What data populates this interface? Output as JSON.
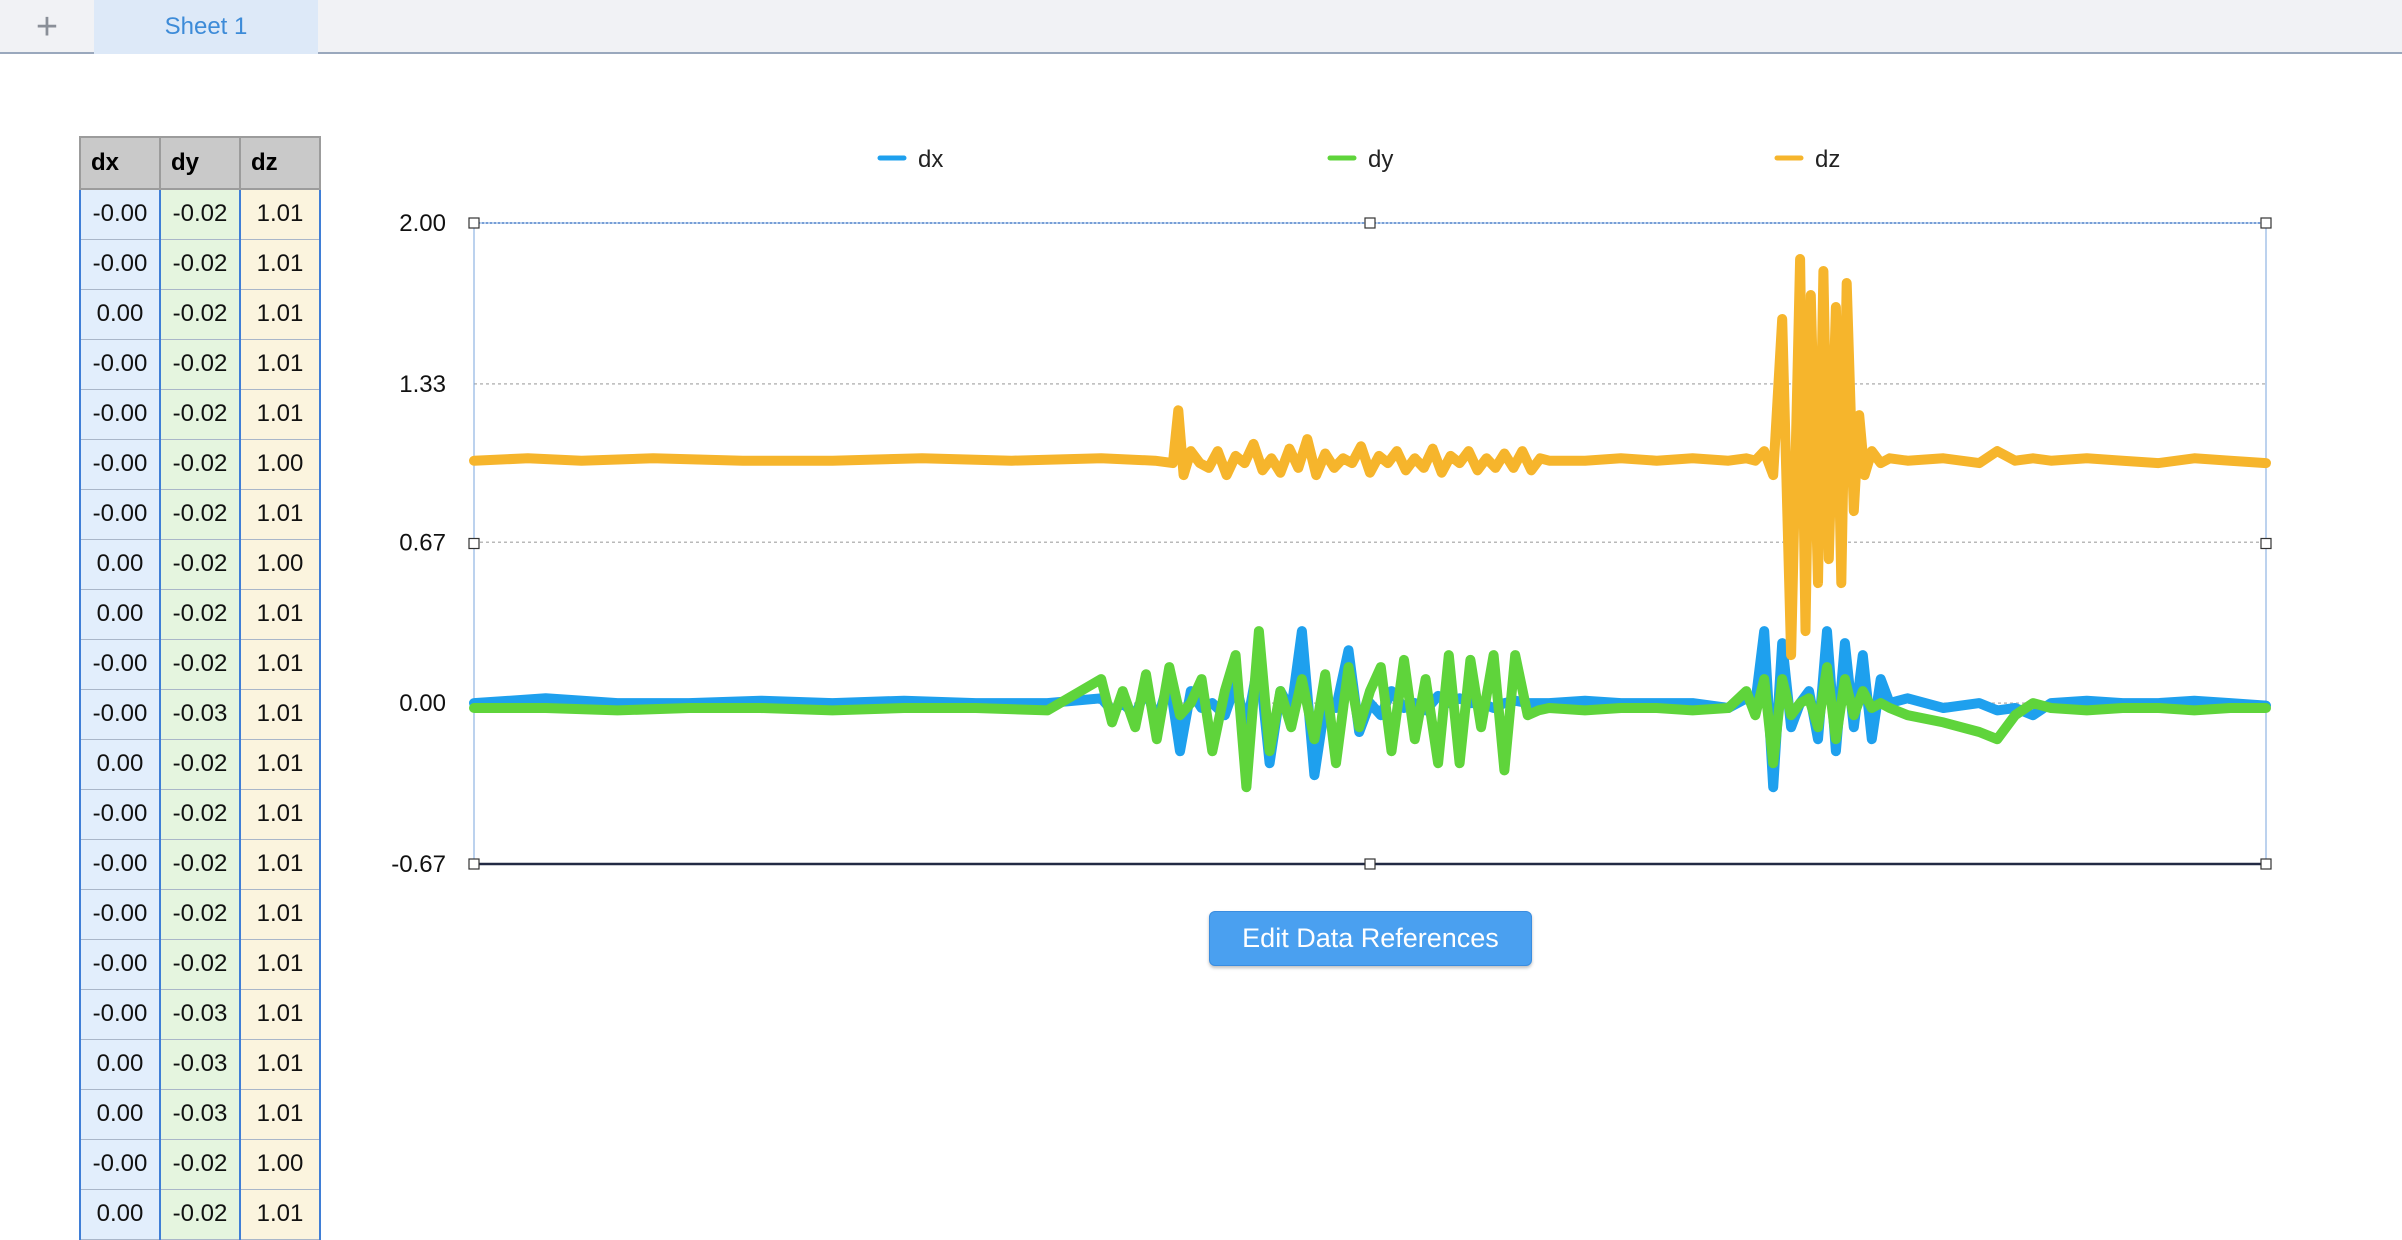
{
  "tabs": {
    "add_label": "+",
    "sheet_label": "Sheet 1"
  },
  "table": {
    "headers": [
      "dx",
      "dy",
      "dz"
    ],
    "rows": [
      [
        "-0.00",
        "-0.02",
        "1.01"
      ],
      [
        "-0.00",
        "-0.02",
        "1.01"
      ],
      [
        "0.00",
        "-0.02",
        "1.01"
      ],
      [
        "-0.00",
        "-0.02",
        "1.01"
      ],
      [
        "-0.00",
        "-0.02",
        "1.01"
      ],
      [
        "-0.00",
        "-0.02",
        "1.00"
      ],
      [
        "-0.00",
        "-0.02",
        "1.01"
      ],
      [
        "0.00",
        "-0.02",
        "1.00"
      ],
      [
        "0.00",
        "-0.02",
        "1.01"
      ],
      [
        "-0.00",
        "-0.02",
        "1.01"
      ],
      [
        "-0.00",
        "-0.03",
        "1.01"
      ],
      [
        "0.00",
        "-0.02",
        "1.01"
      ],
      [
        "-0.00",
        "-0.02",
        "1.01"
      ],
      [
        "-0.00",
        "-0.02",
        "1.01"
      ],
      [
        "-0.00",
        "-0.02",
        "1.01"
      ],
      [
        "-0.00",
        "-0.02",
        "1.01"
      ],
      [
        "-0.00",
        "-0.03",
        "1.01"
      ],
      [
        "0.00",
        "-0.03",
        "1.01"
      ],
      [
        "0.00",
        "-0.03",
        "1.01"
      ],
      [
        "-0.00",
        "-0.02",
        "1.00"
      ],
      [
        "0.00",
        "-0.02",
        "1.01"
      ]
    ]
  },
  "edit_button_label": "Edit Data References",
  "chart_data": {
    "type": "line",
    "ylim": [
      -0.67,
      2.0
    ],
    "ytick_labels": [
      "2.00",
      "1.33",
      "0.67",
      "0.00",
      "-0.67"
    ],
    "ytick_values": [
      2.0,
      1.33,
      0.67,
      0.0,
      -0.67
    ],
    "grid": "horizontal dotted",
    "legend_position": "top",
    "xlim": [
      0,
      100
    ],
    "series": [
      {
        "name": "dx",
        "color": "#1ea0ee",
        "x": [
          0,
          4,
          8,
          12,
          16,
          20,
          24,
          28,
          32,
          35,
          35.6,
          36.2,
          36.9,
          37.5,
          38.1,
          38.8,
          39.4,
          40,
          40.6,
          41.2,
          41.9,
          42.5,
          43.1,
          43.8,
          44.4,
          45,
          45.6,
          46.2,
          46.9,
          47.5,
          48.1,
          48.8,
          49.4,
          50,
          50.6,
          51.2,
          51.9,
          52.5,
          53.1,
          53.8,
          54.4,
          55,
          55.6,
          56.2,
          56.9,
          57.5,
          58.1,
          58.8,
          59.4,
          60,
          62,
          64,
          66,
          68,
          70,
          71,
          71.5,
          72,
          72.5,
          73,
          73.5,
          74,
          74.5,
          75,
          75.5,
          76,
          76.5,
          77,
          77.5,
          78,
          78.5,
          79,
          80,
          82,
          84,
          85,
          86,
          87,
          88,
          90,
          92,
          94,
          96,
          98,
          100
        ],
        "y": [
          0.0,
          0.02,
          0.0,
          0.0,
          0.01,
          0.0,
          0.01,
          0.0,
          0.0,
          0.02,
          -0.03,
          0.0,
          -0.05,
          0.06,
          -0.08,
          0.1,
          -0.2,
          0.05,
          -0.02,
          0.0,
          -0.05,
          0.08,
          -0.1,
          0.18,
          -0.25,
          0.05,
          -0.03,
          0.3,
          -0.3,
          0.0,
          -0.02,
          0.22,
          -0.12,
          0.0,
          -0.05,
          0.05,
          -0.02,
          0.0,
          -0.03,
          0.03,
          0.0,
          0.02,
          0.0,
          0.0,
          -0.02,
          0.0,
          0.01,
          0.0,
          0.0,
          0.0,
          0.01,
          0.0,
          0.0,
          0.0,
          -0.02,
          0.02,
          0.0,
          0.3,
          -0.35,
          0.25,
          -0.1,
          0.0,
          0.05,
          -0.15,
          0.3,
          -0.2,
          0.25,
          -0.1,
          0.2,
          -0.15,
          0.1,
          0.0,
          0.02,
          -0.02,
          0.0,
          -0.03,
          -0.02,
          -0.05,
          0.0,
          0.01,
          0.0,
          0.0,
          0.01,
          0.0,
          -0.01
        ]
      },
      {
        "name": "dy",
        "color": "#5fd43b",
        "x": [
          0,
          4,
          8,
          12,
          16,
          20,
          24,
          28,
          32,
          35,
          35.6,
          36.2,
          36.9,
          37.5,
          38.1,
          38.8,
          39.4,
          40,
          40.6,
          41.2,
          41.9,
          42.5,
          43.1,
          43.8,
          44.4,
          45,
          45.6,
          46.2,
          46.9,
          47.5,
          48.1,
          48.8,
          49.4,
          50,
          50.6,
          51.2,
          51.9,
          52.5,
          53.1,
          53.8,
          54.4,
          55,
          55.6,
          56.2,
          56.9,
          57.5,
          58.1,
          58.8,
          59.4,
          60,
          62,
          64,
          66,
          68,
          70,
          71,
          71.5,
          72,
          72.5,
          73,
          73.5,
          74,
          74.5,
          75,
          75.5,
          76,
          76.5,
          77,
          77.5,
          78,
          78.5,
          79,
          80,
          82,
          84,
          85,
          86,
          87,
          88,
          90,
          92,
          94,
          96,
          98,
          100
        ],
        "y": [
          -0.02,
          -0.02,
          -0.03,
          -0.02,
          -0.02,
          -0.03,
          -0.02,
          -0.02,
          -0.03,
          0.1,
          -0.08,
          0.05,
          -0.1,
          0.12,
          -0.15,
          0.15,
          -0.05,
          0.0,
          0.1,
          -0.2,
          0.05,
          0.2,
          -0.35,
          0.3,
          -0.2,
          0.05,
          -0.1,
          0.1,
          -0.15,
          0.12,
          -0.25,
          0.15,
          -0.1,
          0.05,
          0.15,
          -0.2,
          0.18,
          -0.15,
          0.1,
          -0.25,
          0.2,
          -0.25,
          0.18,
          -0.1,
          0.2,
          -0.28,
          0.2,
          -0.05,
          -0.03,
          -0.02,
          -0.03,
          -0.02,
          -0.02,
          -0.03,
          -0.02,
          0.05,
          -0.05,
          0.1,
          -0.25,
          0.1,
          -0.05,
          0.0,
          0.02,
          -0.1,
          0.15,
          -0.15,
          0.1,
          -0.05,
          0.05,
          -0.02,
          0.0,
          -0.02,
          -0.05,
          -0.08,
          -0.12,
          -0.15,
          -0.05,
          0.0,
          -0.02,
          -0.03,
          -0.02,
          -0.02,
          -0.03,
          -0.02,
          -0.02
        ]
      },
      {
        "name": "dz",
        "color": "#f6b52c",
        "x": [
          0,
          3,
          6,
          10,
          15,
          20,
          25,
          30,
          35,
          38,
          39,
          39.3,
          39.6,
          40,
          40.5,
          41,
          41.5,
          42,
          42.5,
          43,
          43.5,
          44,
          44.5,
          45,
          45.5,
          46,
          46.5,
          47,
          47.5,
          48,
          48.5,
          49,
          49.5,
          50,
          50.5,
          51,
          51.5,
          52,
          52.5,
          53,
          53.5,
          54,
          54.5,
          55,
          55.5,
          56,
          56.5,
          57,
          57.5,
          58,
          58.5,
          59,
          59.5,
          60,
          62,
          64,
          66,
          68,
          70,
          71,
          71.5,
          72,
          72.5,
          73,
          73.5,
          74,
          74.3,
          74.6,
          75,
          75.3,
          75.6,
          76,
          76.3,
          76.6,
          77,
          77.3,
          77.6,
          78,
          78.5,
          79,
          80,
          82,
          84,
          85,
          86,
          87,
          88,
          90,
          92,
          94,
          96,
          98,
          100
        ],
        "y": [
          1.01,
          1.02,
          1.01,
          1.02,
          1.01,
          1.01,
          1.02,
          1.01,
          1.02,
          1.01,
          1.0,
          1.22,
          0.95,
          1.05,
          1.0,
          0.98,
          1.05,
          0.95,
          1.03,
          1.0,
          1.08,
          0.97,
          1.02,
          0.96,
          1.06,
          0.98,
          1.1,
          0.95,
          1.04,
          0.98,
          1.02,
          1.0,
          1.07,
          0.96,
          1.03,
          1.0,
          1.05,
          0.97,
          1.02,
          0.98,
          1.06,
          0.96,
          1.03,
          1.0,
          1.05,
          0.97,
          1.02,
          0.98,
          1.04,
          0.98,
          1.05,
          0.97,
          1.02,
          1.01,
          1.01,
          1.02,
          1.01,
          1.02,
          1.01,
          1.02,
          1.01,
          1.05,
          0.95,
          1.6,
          0.2,
          1.85,
          0.3,
          1.7,
          0.5,
          1.8,
          0.6,
          1.65,
          0.5,
          1.75,
          0.8,
          1.2,
          0.95,
          1.05,
          1.0,
          1.02,
          1.01,
          1.02,
          1.0,
          1.05,
          1.01,
          1.02,
          1.01,
          1.02,
          1.01,
          1.0,
          1.02,
          1.01,
          1.0
        ]
      }
    ]
  }
}
